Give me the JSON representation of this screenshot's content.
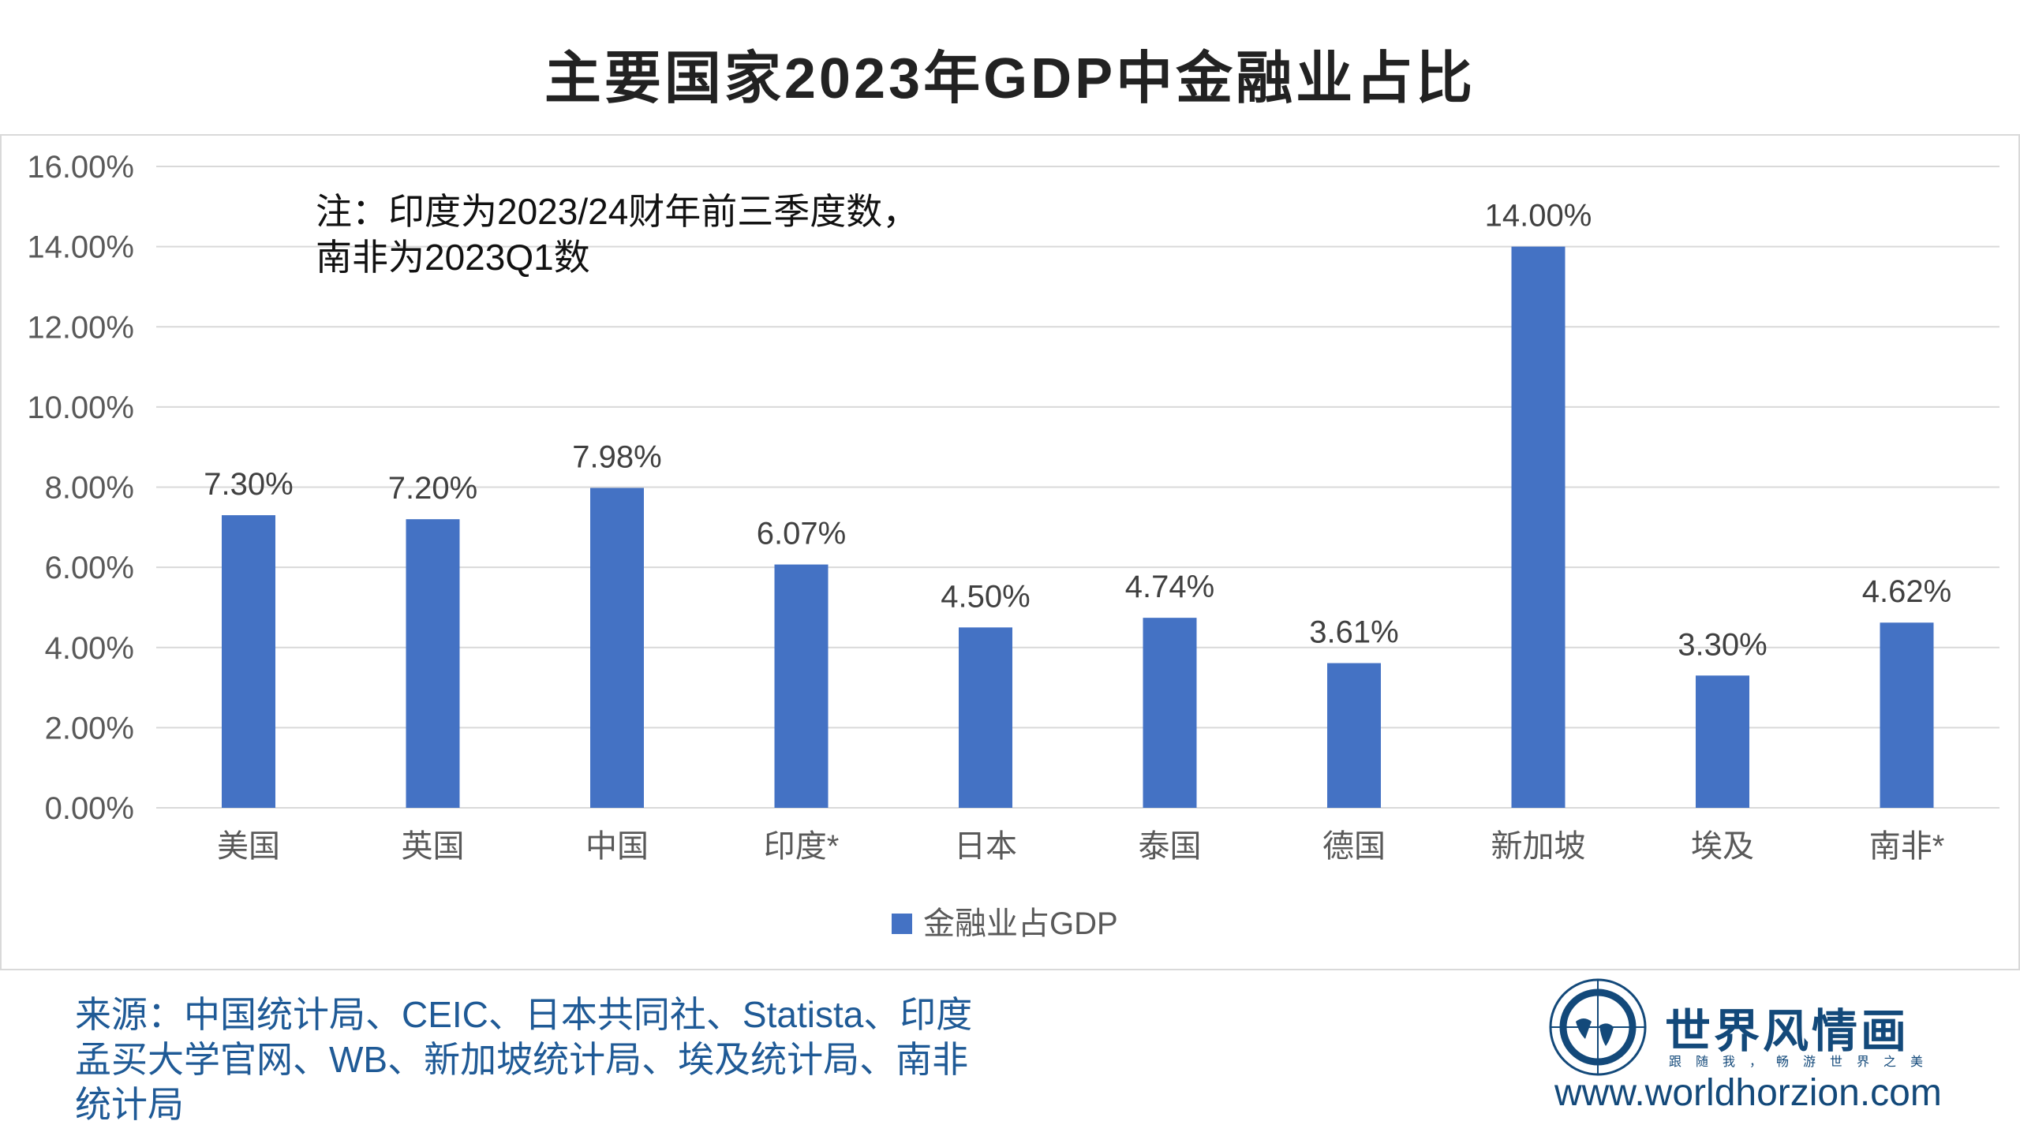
{
  "title": "主要国家2023年GDP中金融业占比",
  "note_lines": [
    "注：印度为2023/24财年前三季度数，",
    "南非为2023Q1数"
  ],
  "footer": {
    "source": "来源：中国统计局、CEIC、日本共同社、Statista、印度孟买大学官网、WB、新加坡统计局、埃及统计局、南非统计局"
  },
  "logo": {
    "name": "世界风情画",
    "slogan": "跟随我，畅游世界之美",
    "url": "www.worldhorzion.com",
    "color": "#13497a"
  },
  "chart_data": {
    "type": "bar",
    "title": "主要国家2023年GDP中金融业占比",
    "categories": [
      "美国",
      "英国",
      "中国",
      "印度*",
      "日本",
      "泰国",
      "德国",
      "新加坡",
      "埃及",
      "南非*"
    ],
    "series": [
      {
        "name": "金融业占GDP",
        "values": [
          7.3,
          7.2,
          7.98,
          6.07,
          4.5,
          4.74,
          3.61,
          14.0,
          3.3,
          4.62
        ],
        "color": "#4472C4"
      }
    ],
    "data_labels": [
      "7.30%",
      "7.20%",
      "7.98%",
      "6.07%",
      "4.50%",
      "4.74%",
      "3.61%",
      "14.00%",
      "3.30%",
      "4.62%"
    ],
    "ylim": [
      0,
      16
    ],
    "yticks": [
      "0.00%",
      "2.00%",
      "4.00%",
      "6.00%",
      "8.00%",
      "10.00%",
      "12.00%",
      "14.00%",
      "16.00%"
    ],
    "grid": true,
    "legend": "bottom"
  }
}
